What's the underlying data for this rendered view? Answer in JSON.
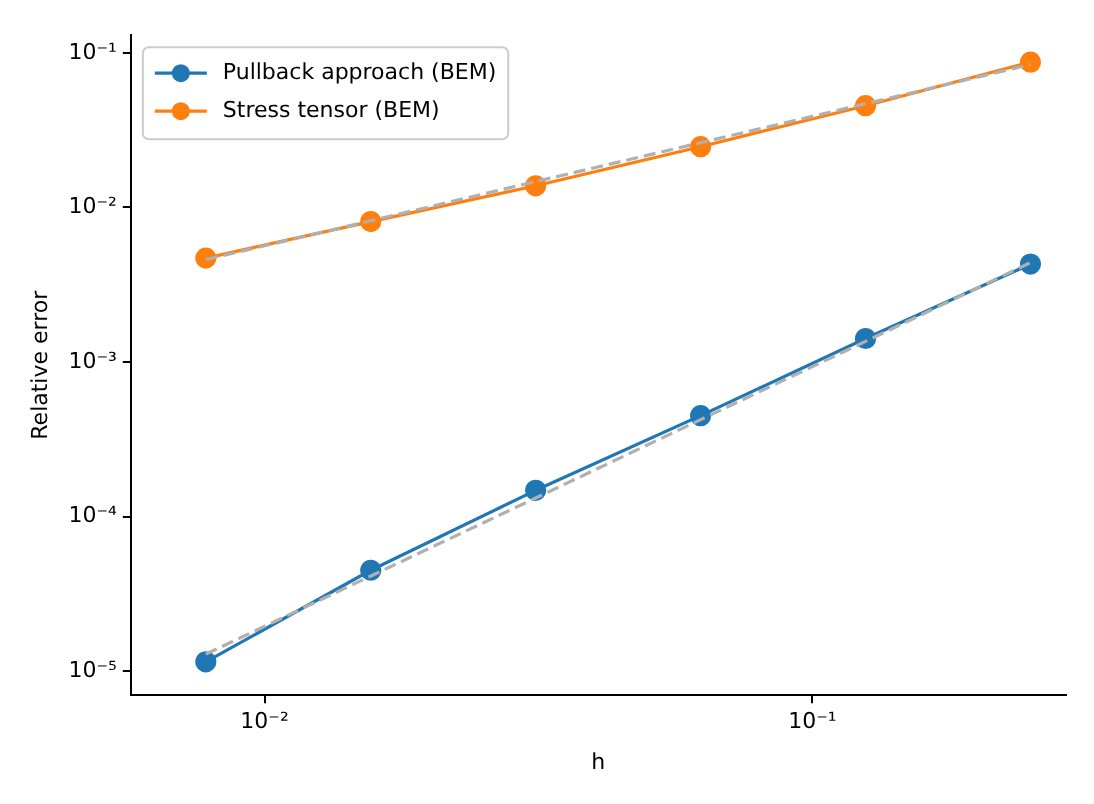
{
  "chart_data": {
    "type": "line",
    "xlabel": "h",
    "ylabel": "Relative error",
    "log": "xy",
    "marker": "circle",
    "legend": "top left",
    "x": [
      0.0078125,
      0.015625,
      0.03125,
      0.0625,
      0.125,
      0.25
    ],
    "xlim": [
      0.0057,
      0.29
    ],
    "ylim": [
      7e-06,
      0.13
    ],
    "xticks": [
      {
        "value": 0.01,
        "label": "10⁻²"
      },
      {
        "value": 0.1,
        "label": "10⁻¹"
      }
    ],
    "yticks": [
      {
        "value": 1e-05,
        "label": "10⁻⁵"
      },
      {
        "value": 0.0001,
        "label": "10⁻⁴"
      },
      {
        "value": 0.001,
        "label": "10⁻³"
      },
      {
        "value": 0.01,
        "label": "10⁻²"
      },
      {
        "value": 0.1,
        "label": "10⁻¹"
      }
    ],
    "series": [
      {
        "name": "Pullback approach (BEM)",
        "color": "#1f77b4",
        "values": [
          1.15e-05,
          4.5e-05,
          0.000148,
          0.00045,
          0.00142,
          0.0043
        ]
      },
      {
        "name": "Stress tensor (BEM)",
        "color": "#ff7f0e",
        "values": [
          0.0047,
          0.0081,
          0.0138,
          0.0247,
          0.0455,
          0.087
        ]
      },
      {
        "color": "#b0b0b0",
        "line_style": "dashed",
        "marker": "none",
        "values": [
          1.29e-05,
          4.13e-05,
          0.000132,
          0.000424,
          0.00136,
          0.0044
        ]
      },
      {
        "color": "#b0b0b0",
        "line_style": "dashed",
        "marker": "none",
        "values": [
          0.0046,
          0.0082,
          0.0147,
          0.0262,
          0.0468,
          0.084
        ]
      }
    ]
  }
}
